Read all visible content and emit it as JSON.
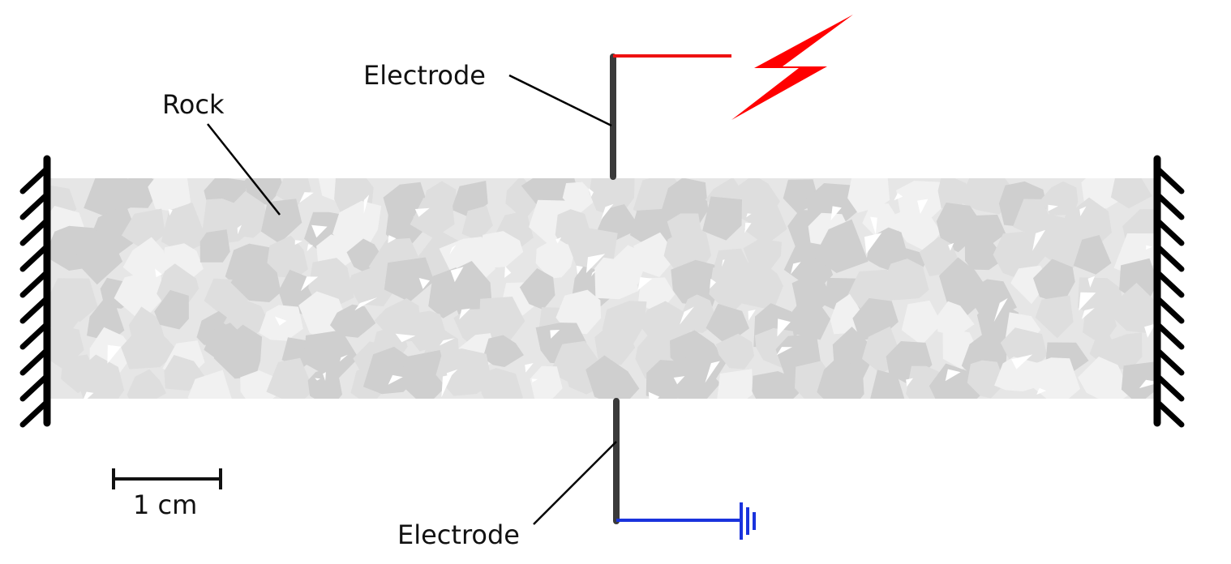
{
  "labels": {
    "rock": "Rock",
    "electrode_top": "Electrode",
    "electrode_bottom": "Electrode",
    "scale": "1 cm"
  },
  "colors": {
    "background": "#ffffff",
    "rock_base": "#e6e6e6",
    "grain_light": "#f1f1f1",
    "grain_mid": "#dedede",
    "grain_dark": "#cfcfcf",
    "electrode": "#3a3a3a",
    "wall": "#000000",
    "leader": "#000000",
    "source_wire": "#ee1111",
    "lightning": "#ff0000",
    "ground_wire": "#1a33dd",
    "text": "#111111"
  },
  "icons": {
    "voltage_source": "lightning-bolt-icon",
    "ground": "ground-symbol-icon",
    "fixed_support": "hatched-wall-icon"
  }
}
